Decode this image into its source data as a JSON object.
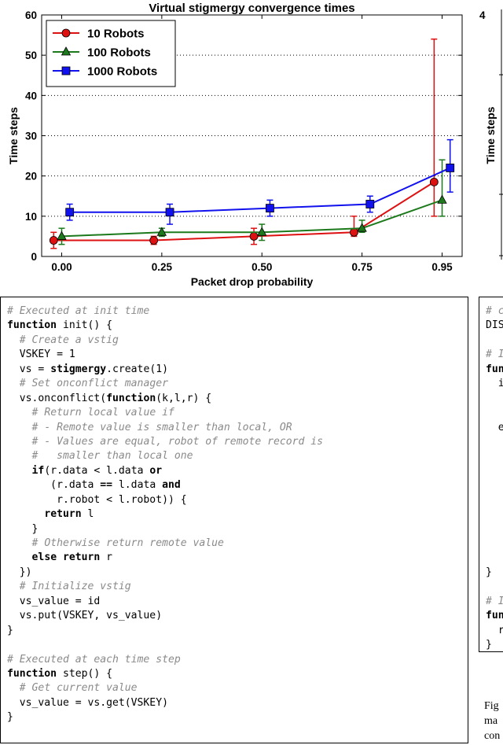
{
  "chart_data": {
    "type": "line",
    "title": "Virtual stigmergy convergence times",
    "xlabel": "Packet drop probability",
    "ylabel": "Time steps",
    "xlim": [
      -0.05,
      1.0
    ],
    "ylim": [
      0,
      60
    ],
    "xticks": [
      0.0,
      0.25,
      0.5,
      0.75,
      0.95
    ],
    "xticklabels": [
      "0.00",
      "0.25",
      "0.50",
      "0.75",
      "0.95"
    ],
    "yticks": [
      0,
      10,
      20,
      30,
      40,
      50,
      60
    ],
    "grid": "horizontal dotted",
    "legend_position": "top-left",
    "series": [
      {
        "name": "10 Robots",
        "color": "#dd1111",
        "marker": "circle",
        "x": [
          -0.02,
          0.23,
          0.48,
          0.73,
          0.93
        ],
        "y": [
          4,
          4,
          5,
          6,
          18.5
        ],
        "err_low": [
          2,
          3,
          3,
          5,
          10
        ],
        "err_high": [
          6,
          5,
          7,
          10,
          54
        ]
      },
      {
        "name": "100 Robots",
        "color": "#1c7a1c",
        "marker": "triangle",
        "x": [
          0.0,
          0.25,
          0.5,
          0.75,
          0.95
        ],
        "y": [
          5,
          6,
          6,
          7,
          14
        ],
        "err_low": [
          3,
          5,
          4,
          6,
          10
        ],
        "err_high": [
          7,
          7,
          8,
          9,
          24
        ]
      },
      {
        "name": "1000 Robots",
        "color": "#1111ee",
        "marker": "square",
        "x": [
          0.02,
          0.27,
          0.52,
          0.77,
          0.97
        ],
        "y": [
          11,
          11,
          12,
          13,
          22
        ],
        "err_low": [
          9,
          8,
          10,
          11,
          16
        ],
        "err_high": [
          13,
          13,
          14,
          15,
          29
        ]
      }
    ]
  },
  "code": {
    "lines": [
      [
        {
          "c": "# Executed at init time"
        }
      ],
      [
        {
          "k": "function"
        },
        {
          "t": " init() {"
        }
      ],
      [
        {
          "t": "  "
        },
        {
          "c": "# Create a vstig"
        }
      ],
      [
        {
          "t": "  VSKEY = 1"
        }
      ],
      [
        {
          "t": "  vs = "
        },
        {
          "k": "stigmergy"
        },
        {
          "t": ".create(1)"
        }
      ],
      [
        {
          "t": "  "
        },
        {
          "c": "# Set onconflict manager"
        }
      ],
      [
        {
          "t": "  vs.onconflict("
        },
        {
          "k": "function"
        },
        {
          "t": "(k,l,r) {"
        }
      ],
      [
        {
          "t": "    "
        },
        {
          "c": "# Return local value if"
        }
      ],
      [
        {
          "t": "    "
        },
        {
          "c": "# - Remote value is smaller than local, OR"
        }
      ],
      [
        {
          "t": "    "
        },
        {
          "c": "# - Values are equal, robot of remote record is"
        }
      ],
      [
        {
          "t": "    "
        },
        {
          "c": "#   smaller than local one"
        }
      ],
      [
        {
          "t": "    "
        },
        {
          "k": "if"
        },
        {
          "t": "(r.data < l.data "
        },
        {
          "k": "or"
        }
      ],
      [
        {
          "t": "       (r.data "
        },
        {
          "k": "=="
        },
        {
          "t": " l.data "
        },
        {
          "k": "and"
        }
      ],
      [
        {
          "t": "        r.robot < l.robot)) {"
        }
      ],
      [
        {
          "t": "      "
        },
        {
          "k": "return"
        },
        {
          "t": " l"
        }
      ],
      [
        {
          "t": "    }"
        }
      ],
      [
        {
          "t": "    "
        },
        {
          "c": "# Otherwise return remote value"
        }
      ],
      [
        {
          "t": "    "
        },
        {
          "k": "else return"
        },
        {
          "t": " r"
        }
      ],
      [
        {
          "t": "  })"
        }
      ],
      [
        {
          "t": "  "
        },
        {
          "c": "# Initialize vstig"
        }
      ],
      [
        {
          "t": "  vs_value = id"
        }
      ],
      [
        {
          "t": "  vs.put(VSKEY, vs_value)"
        }
      ],
      [
        {
          "t": "}"
        }
      ],
      [
        {
          "t": ""
        }
      ],
      [
        {
          "c": "# Executed at each time step"
        }
      ],
      [
        {
          "k": "function"
        },
        {
          "t": " step() {"
        }
      ],
      [
        {
          "t": "  "
        },
        {
          "c": "# Get current value"
        }
      ],
      [
        {
          "t": "  vs_value = vs.get(VSKEY)"
        }
      ],
      [
        {
          "t": "}"
        }
      ]
    ]
  },
  "right_panel": {
    "chart_ylabel": "Time steps",
    "chart_top_tick": "4",
    "code_lines": [
      [
        {
          "c": "# c"
        }
      ],
      [
        {
          "t": "DIS"
        }
      ],
      [
        {
          "t": ""
        }
      ],
      [
        {
          "c": "# I"
        }
      ],
      [
        {
          "k": "fun"
        }
      ],
      [
        {
          "t": "  i"
        }
      ],
      [
        {
          "t": ""
        }
      ],
      [
        {
          "t": ""
        }
      ],
      [
        {
          "t": "  e"
        }
      ],
      [
        {
          "t": ""
        }
      ],
      [
        {
          "t": ""
        }
      ],
      [
        {
          "t": ""
        }
      ],
      [
        {
          "t": ""
        }
      ],
      [
        {
          "t": ""
        }
      ],
      [
        {
          "t": ""
        }
      ],
      [
        {
          "t": ""
        }
      ],
      [
        {
          "t": ""
        }
      ],
      [
        {
          "t": ""
        }
      ],
      [
        {
          "t": "}"
        }
      ],
      [
        {
          "t": ""
        }
      ],
      [
        {
          "c": "# I"
        }
      ],
      [
        {
          "k": "fun"
        }
      ],
      [
        {
          "t": "  r"
        }
      ],
      [
        {
          "t": "}"
        }
      ]
    ],
    "caption": [
      "Fig",
      "ma",
      "con"
    ]
  }
}
